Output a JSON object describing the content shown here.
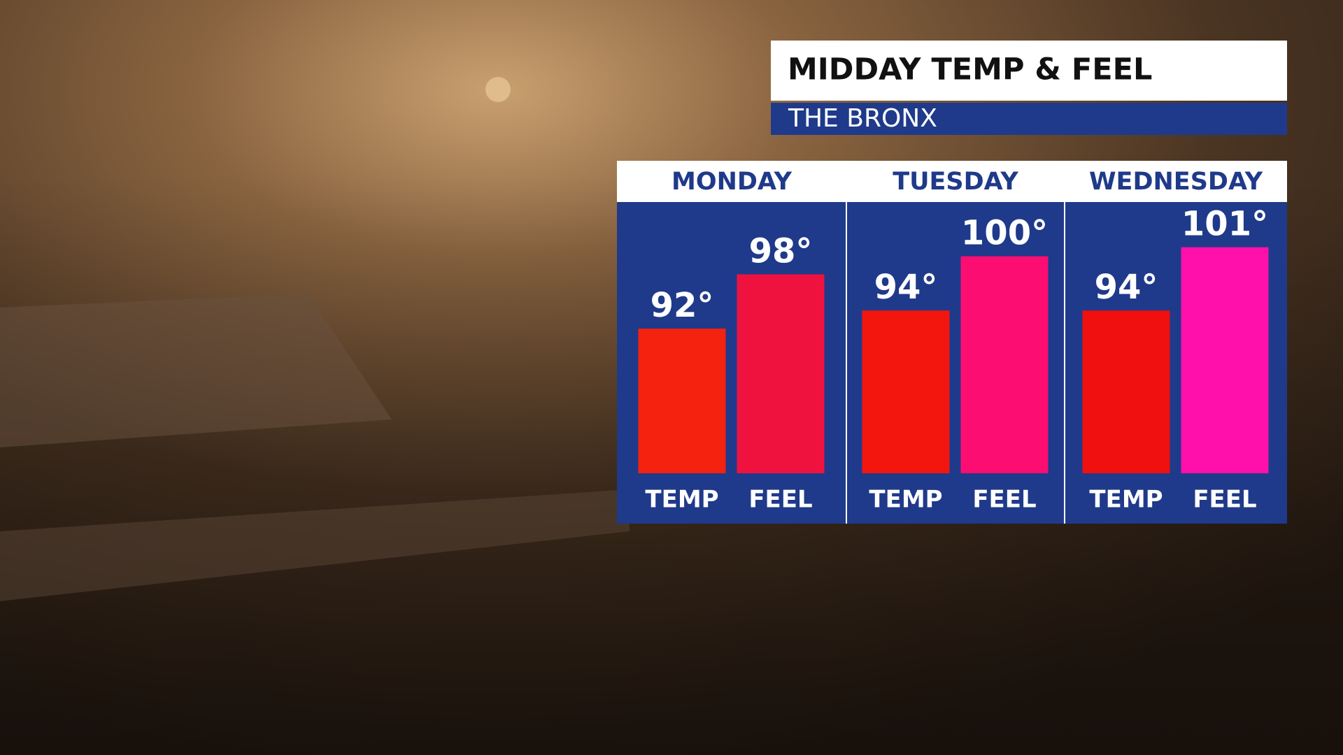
{
  "chart_data": {
    "type": "bar",
    "title": "MIDDAY TEMP & FEEL",
    "subtitle": "THE BRONX",
    "categories": [
      "MONDAY",
      "TUESDAY",
      "WEDNESDAY"
    ],
    "series": [
      {
        "name": "TEMP",
        "colors": [
          "#f5220f",
          "#f2160f",
          "#f0100f"
        ],
        "values": [
          92,
          94,
          94
        ],
        "value_labels": [
          "92°",
          "94°",
          "94°"
        ]
      },
      {
        "name": "FEEL",
        "colors": [
          "#f0123e",
          "#fb0d72",
          "#ff10aa"
        ],
        "values": [
          98,
          100,
          101
        ],
        "value_labels": [
          "98°",
          "100°",
          "101°"
        ]
      }
    ],
    "ylim": [
      76,
      106
    ]
  }
}
